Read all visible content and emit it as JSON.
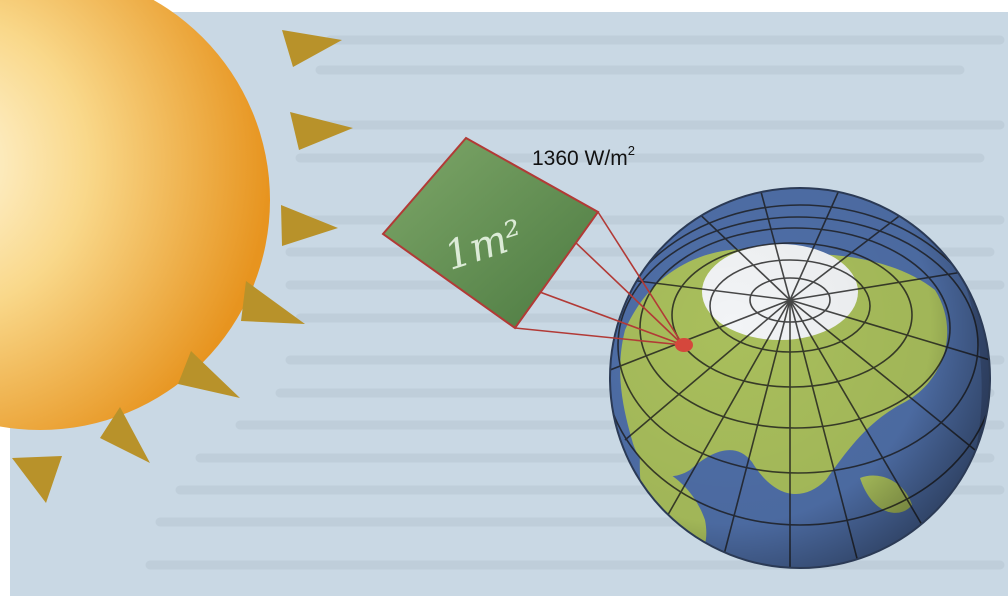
{
  "diagram": {
    "flux_value": "1360 W/m",
    "flux_superscript": "2",
    "panel_label": "1m²"
  },
  "colors": {
    "background": "#c9d8e4",
    "sun_core": "#fff6dc",
    "sun_edge": "#e7941f",
    "ray": "#b8922a",
    "panel": "#5e8a4e",
    "beam": "#b23a36",
    "land": "#a9bf5c",
    "ocean": "#4f6fa8",
    "ice": "#f2f4f6"
  }
}
